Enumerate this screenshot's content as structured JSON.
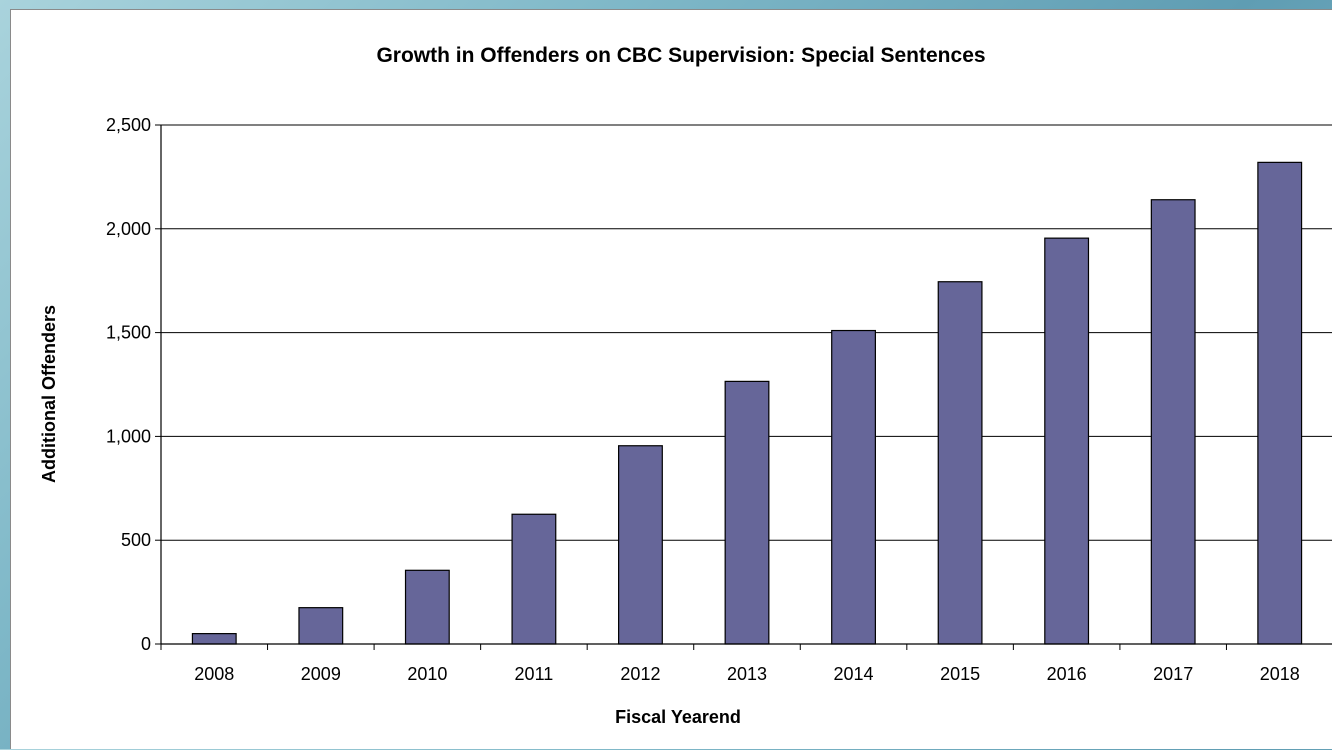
{
  "chart_data": {
    "type": "bar",
    "title": "Growth in Offenders on CBC Supervision: Special Sentences",
    "xlabel": "Fiscal Yearend",
    "ylabel": "Additional Offenders",
    "categories": [
      "2008",
      "2009",
      "2010",
      "2011",
      "2012",
      "2013",
      "2014",
      "2015",
      "2016",
      "2017",
      "2018"
    ],
    "values": [
      50,
      175,
      355,
      625,
      955,
      1265,
      1510,
      1745,
      1955,
      2140,
      2320
    ],
    "ylim": [
      0,
      2500
    ],
    "yticks": [
      0,
      500,
      1000,
      1500,
      2000,
      2500
    ],
    "ytick_labels": [
      "0",
      "500",
      "1,000",
      "1,500",
      "2,000",
      "2,500"
    ],
    "bar_color": "#666699",
    "grid": true,
    "legend": "none"
  }
}
